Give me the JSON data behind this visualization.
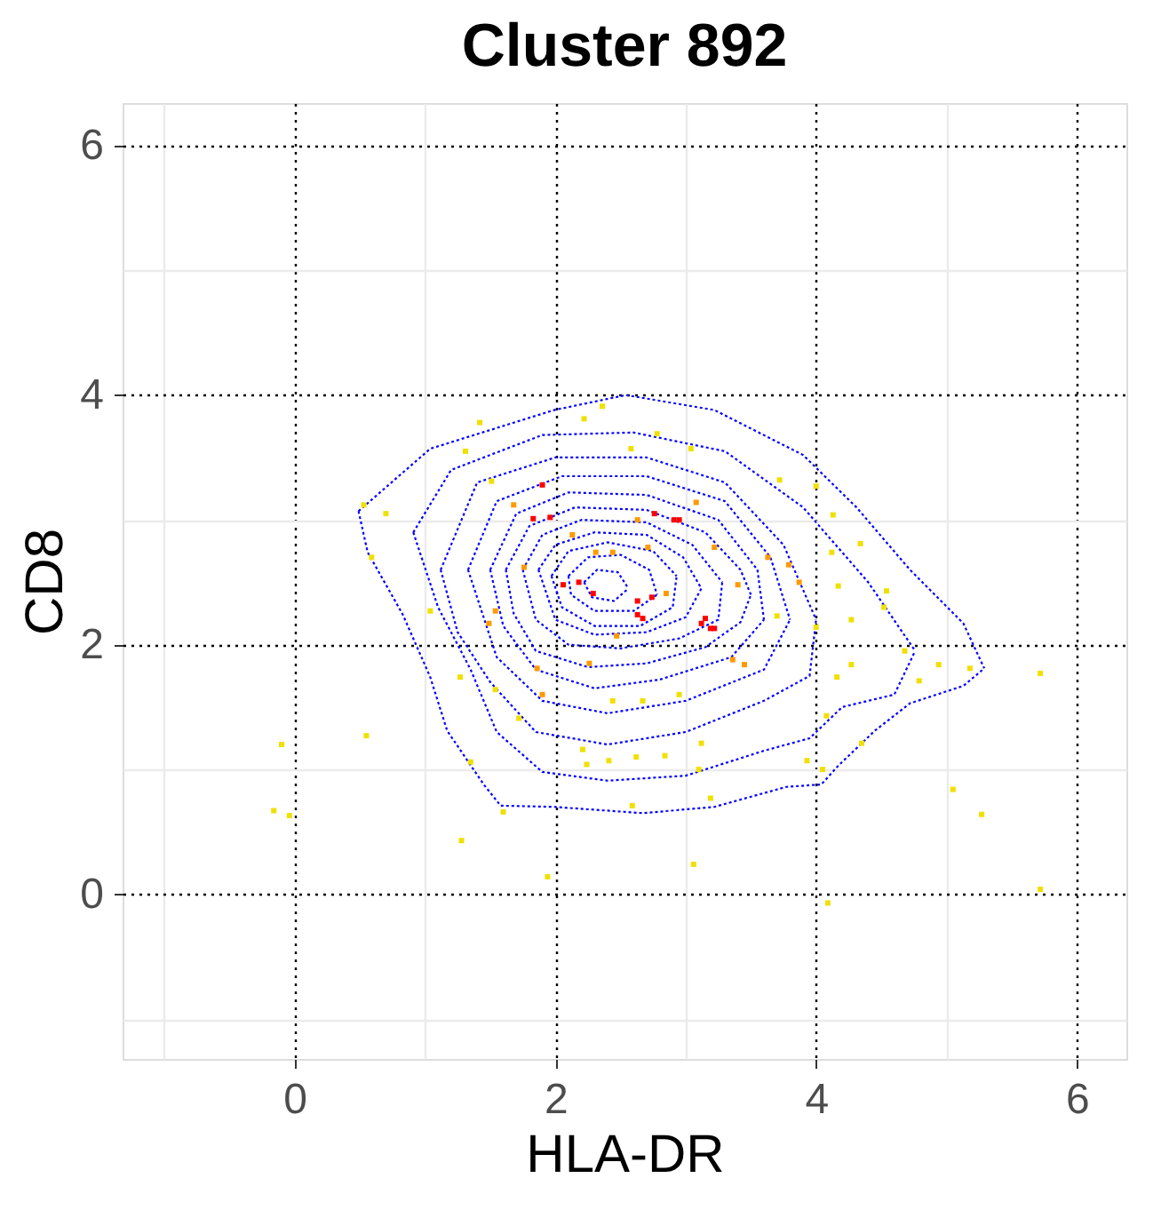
{
  "chart_data": {
    "type": "scatter",
    "title": "Cluster 892",
    "xlabel": "HLA-DR",
    "ylabel": "CD8",
    "xlim": [
      -1.32,
      6.38
    ],
    "ylim": [
      -1.32,
      6.34
    ],
    "xticks": [
      {
        "value": -1,
        "label": null
      },
      0,
      {
        "value": 1,
        "label": null
      },
      2,
      {
        "value": 3,
        "label": null
      },
      4,
      {
        "value": 5,
        "label": null
      },
      6
    ],
    "yticks": [
      {
        "value": -1,
        "label": null
      },
      0,
      {
        "value": 1,
        "label": null
      },
      2,
      {
        "value": 3,
        "label": null
      },
      4,
      {
        "value": 5,
        "label": null
      },
      6
    ],
    "grid": true,
    "series": [
      {
        "marker": "square",
        "color": "#f0e000",
        "x": [
          2.22,
          2.36,
          1.42,
          1.31,
          0.53,
          0.7,
          0.59,
          1.04,
          1.27,
          1.54,
          1.72,
          2.44,
          2.67,
          2.95,
          2.78,
          2.58,
          1.51,
          -0.1,
          0.55,
          -0.16,
          -0.04,
          1.35,
          1.6,
          1.28,
          1.94,
          2.21,
          2.24,
          2.41,
          2.62,
          2.84,
          2.59,
          3.06,
          3.19,
          3.12,
          3.1,
          4.27,
          4.16,
          4.08,
          3.93,
          4.05,
          4.35,
          4.94,
          5.18,
          5.72,
          5.05,
          5.27,
          5.72,
          4.09,
          4.13,
          4.34,
          4.54,
          4.52,
          4.27,
          4.17,
          4.12,
          3.72,
          4.0,
          3.04,
          3.7,
          4.0,
          4.68,
          4.79
        ],
        "values": [
          3.81,
          3.91,
          3.78,
          3.55,
          3.12,
          3.05,
          2.7,
          2.27,
          1.74,
          1.64,
          1.41,
          1.55,
          1.55,
          1.6,
          3.69,
          3.57,
          3.31,
          1.2,
          1.27,
          0.67,
          0.63,
          1.06,
          0.66,
          0.43,
          0.14,
          1.16,
          1.04,
          1.07,
          1.1,
          1.11,
          0.71,
          0.24,
          0.77,
          1.21,
          1.0,
          1.84,
          1.74,
          1.43,
          1.07,
          1.0,
          1.21,
          1.84,
          1.81,
          1.77,
          0.84,
          0.64,
          0.04,
          -0.07,
          3.04,
          2.81,
          2.43,
          2.3,
          2.2,
          2.47,
          2.74,
          3.32,
          3.27,
          3.57,
          2.23,
          2.14,
          1.95,
          1.71
        ]
      },
      {
        "marker": "square",
        "color": "#ff9a00",
        "x": [
          2.13,
          2.31,
          2.44,
          2.71,
          1.76,
          1.54,
          1.49,
          1.86,
          1.9,
          2.26,
          2.47,
          2.85,
          1.68,
          2.63,
          3.08,
          3.79,
          3.87,
          3.4,
          3.36,
          3.45,
          3.63,
          3.22
        ],
        "values": [
          2.88,
          2.74,
          2.74,
          2.78,
          2.62,
          2.27,
          2.17,
          1.81,
          1.6,
          1.85,
          2.07,
          2.41,
          3.12,
          3.0,
          3.14,
          2.64,
          2.5,
          2.48,
          1.88,
          1.84,
          2.7,
          2.78
        ]
      },
      {
        "marker": "square",
        "color": "#ff0000",
        "x": [
          1.9,
          1.83,
          1.96,
          2.18,
          2.06,
          2.29,
          2.63,
          2.67,
          2.63,
          2.95,
          2.91,
          3.12,
          3.19,
          2.76,
          2.74,
          3.15,
          3.22
        ],
        "values": [
          3.28,
          3.01,
          3.02,
          2.5,
          2.48,
          2.41,
          2.35,
          2.21,
          2.24,
          3.0,
          3.0,
          2.17,
          2.13,
          3.05,
          2.38,
          2.21,
          2.13
        ]
      },
      {
        "type": "line",
        "color": "#0000ff",
        "line_style": "dotted",
        "x": [
          0.49,
          1.04,
          1.99,
          2.54,
          3.22,
          3.9,
          4.31,
          4.72,
          5.13,
          5.29
        ],
        "values": [
          3.07,
          3.57,
          3.88,
          4.0,
          3.88,
          3.52,
          3.1,
          2.6,
          2.17,
          1.81
        ]
      },
      {
        "type": "line",
        "color": "#0000ff",
        "line_style": "dotted",
        "x": [
          0.49,
          0.56,
          0.83,
          1.04,
          1.17,
          1.45,
          1.58,
          1.99,
          2.67,
          3.22,
          3.77,
          4.04,
          4.17,
          4.45,
          4.72,
          5.13,
          5.29
        ],
        "values": [
          3.07,
          2.74,
          2.24,
          1.74,
          1.31,
          0.88,
          0.71,
          0.7,
          0.65,
          0.7,
          0.86,
          0.88,
          1.03,
          1.31,
          1.53,
          1.67,
          1.81
        ]
      },
      {
        "type": "line",
        "color": "#0000ff",
        "line_style": "dotted",
        "x": [
          0.91,
          1.2,
          1.9,
          2.6,
          3.3,
          3.9,
          4.4,
          4.76
        ],
        "values": [
          2.9,
          3.4,
          3.68,
          3.7,
          3.55,
          3.1,
          2.5,
          1.95
        ]
      },
      {
        "type": "line",
        "color": "#0000ff",
        "line_style": "dotted",
        "x": [
          0.91,
          1.1,
          1.35,
          1.55,
          1.9,
          2.4,
          3.0,
          3.6,
          3.95,
          4.2,
          4.6,
          4.76
        ],
        "values": [
          2.9,
          2.3,
          1.8,
          1.3,
          0.98,
          0.91,
          0.95,
          1.15,
          1.25,
          1.5,
          1.6,
          1.95
        ]
      },
      {
        "type": "line",
        "color": "#0000ff",
        "line_style": "dotted",
        "x": [
          1.12,
          1.4,
          2.0,
          2.7,
          3.3,
          3.75,
          4.0
        ],
        "values": [
          2.6,
          3.3,
          3.5,
          3.5,
          3.3,
          2.8,
          2.2
        ]
      },
      {
        "type": "line",
        "color": "#0000ff",
        "line_style": "dotted",
        "x": [
          1.12,
          1.25,
          1.5,
          1.85,
          2.4,
          3.0,
          3.6,
          3.95,
          4.0
        ],
        "values": [
          2.6,
          2.1,
          1.7,
          1.3,
          1.2,
          1.3,
          1.55,
          1.75,
          2.2
        ]
      },
      {
        "type": "line",
        "color": "#0000ff",
        "line_style": "dotted",
        "x": [
          1.33,
          1.55,
          2.05,
          2.7,
          3.3,
          3.65,
          3.8
        ],
        "values": [
          2.6,
          3.15,
          3.35,
          3.35,
          3.15,
          2.7,
          2.2
        ]
      },
      {
        "type": "line",
        "color": "#0000ff",
        "line_style": "dotted",
        "x": [
          1.33,
          1.55,
          1.9,
          2.4,
          3.0,
          3.6,
          3.8
        ],
        "values": [
          2.6,
          1.9,
          1.55,
          1.45,
          1.55,
          1.8,
          2.2
        ]
      },
      {
        "type": "line",
        "color": "#0000ff",
        "line_style": "dotted",
        "x": [
          1.5,
          1.7,
          2.1,
          2.7,
          3.25,
          3.55,
          3.6
        ],
        "values": [
          2.6,
          3.05,
          3.22,
          3.2,
          3.0,
          2.6,
          2.2
        ]
      },
      {
        "type": "line",
        "color": "#0000ff",
        "line_style": "dotted",
        "x": [
          1.5,
          1.6,
          1.85,
          2.3,
          2.8,
          3.35,
          3.6
        ],
        "values": [
          2.6,
          2.15,
          1.8,
          1.65,
          1.72,
          1.9,
          2.2
        ]
      },
      {
        "type": "line",
        "color": "#0000ff",
        "line_style": "dotted",
        "x": [
          1.62,
          1.8,
          2.15,
          2.7,
          3.15,
          3.42,
          3.5
        ],
        "values": [
          2.6,
          2.95,
          3.1,
          3.08,
          2.9,
          2.6,
          2.4
        ]
      },
      {
        "type": "line",
        "color": "#0000ff",
        "line_style": "dotted",
        "x": [
          1.62,
          1.68,
          1.85,
          2.25,
          2.7,
          3.15,
          3.42,
          3.5
        ],
        "values": [
          2.6,
          2.25,
          1.95,
          1.82,
          1.85,
          1.98,
          2.18,
          2.4
        ]
      },
      {
        "type": "line",
        "color": "#0000ff",
        "line_style": "dotted",
        "x": [
          1.75,
          1.9,
          2.2,
          2.7,
          3.05,
          3.28
        ],
        "values": [
          2.6,
          2.88,
          3.0,
          2.98,
          2.8,
          2.5
        ]
      },
      {
        "type": "line",
        "color": "#0000ff",
        "line_style": "dotted",
        "x": [
          1.75,
          1.85,
          2.1,
          2.5,
          2.95,
          3.25,
          3.28
        ],
        "values": [
          2.6,
          2.2,
          2.0,
          1.97,
          2.05,
          2.2,
          2.5
        ]
      },
      {
        "type": "line",
        "color": "#0000ff",
        "line_style": "dotted",
        "x": [
          1.87,
          2.0,
          2.3,
          2.7,
          2.98,
          3.12
        ],
        "values": [
          2.6,
          2.8,
          2.9,
          2.88,
          2.7,
          2.45
        ]
      },
      {
        "type": "line",
        "color": "#0000ff",
        "line_style": "dotted",
        "x": [
          1.87,
          2.0,
          2.3,
          2.7,
          3.0,
          3.12
        ],
        "values": [
          2.6,
          2.2,
          2.08,
          2.1,
          2.22,
          2.45
        ]
      },
      {
        "type": "line",
        "color": "#0000ff",
        "line_style": "dotted",
        "x": [
          1.97,
          2.1,
          2.4,
          2.75,
          2.93
        ],
        "values": [
          2.55,
          2.75,
          2.82,
          2.75,
          2.55
        ]
      },
      {
        "type": "line",
        "color": "#0000ff",
        "line_style": "dotted",
        "x": [
          1.97,
          2.05,
          2.3,
          2.65,
          2.9,
          2.93
        ],
        "values": [
          2.55,
          2.3,
          2.15,
          2.15,
          2.3,
          2.55
        ]
      },
      {
        "type": "line",
        "color": "#0000ff",
        "line_style": "dotted",
        "x": [
          2.1,
          2.25,
          2.5,
          2.72,
          2.78
        ],
        "values": [
          2.55,
          2.7,
          2.72,
          2.6,
          2.4
        ]
      },
      {
        "type": "line",
        "color": "#0000ff",
        "line_style": "dotted",
        "x": [
          2.1,
          2.12,
          2.3,
          2.6,
          2.78
        ],
        "values": [
          2.55,
          2.4,
          2.27,
          2.27,
          2.4
        ]
      },
      {
        "type": "line",
        "color": "#0000ff",
        "line_style": "dotted",
        "x": [
          2.22,
          2.32,
          2.48,
          2.56
        ],
        "values": [
          2.5,
          2.6,
          2.58,
          2.45
        ]
      },
      {
        "type": "line",
        "color": "#0000ff",
        "line_style": "dotted",
        "x": [
          2.22,
          2.28,
          2.45,
          2.56
        ],
        "values": [
          2.5,
          2.38,
          2.35,
          2.45
        ]
      }
    ]
  }
}
